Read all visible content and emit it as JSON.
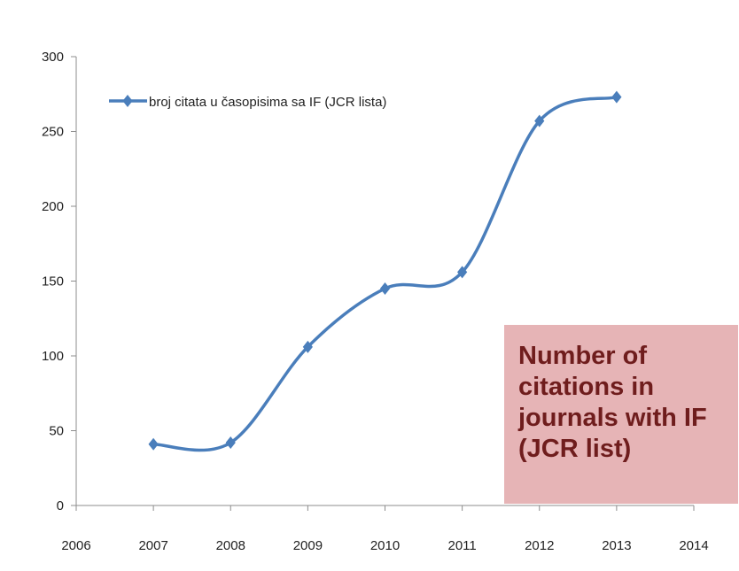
{
  "chart_data": {
    "type": "line",
    "x": [
      2007,
      2008,
      2009,
      2010,
      2011,
      2012,
      2013
    ],
    "series": [
      {
        "name": "broj citata u časopisima sa IF (JCR lista)",
        "values": [
          41,
          42,
          106,
          145,
          156,
          257,
          273
        ],
        "color": "#4a7ebb"
      }
    ],
    "x_ticks": [
      2006,
      2007,
      2008,
      2009,
      2010,
      2011,
      2012,
      2013,
      2014
    ],
    "y_ticks": [
      0,
      50,
      100,
      150,
      200,
      250,
      300
    ],
    "xlim": [
      2006,
      2014
    ],
    "ylim": [
      0,
      300
    ],
    "grid": false,
    "legend_position": "top-left",
    "marker": "diamond",
    "smooth": true
  },
  "annotation": {
    "text": "Number of citations in journals with IF (JCR list)",
    "background": "#e6b4b6",
    "color": "#6f1d1d"
  }
}
